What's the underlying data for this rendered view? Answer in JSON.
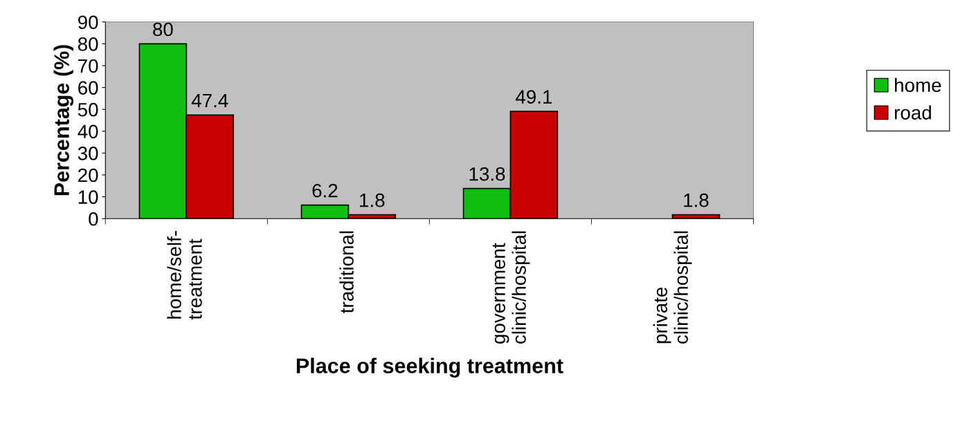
{
  "chart_data": {
    "type": "bar",
    "xlabel": "Place of seeking treatment",
    "ylabel": "Percentage (%)",
    "categories": [
      "home/self-\ntreatment",
      "traditional",
      "government\nclinic/hospital",
      "private\nclinic/hospital"
    ],
    "series": [
      {
        "name": "home",
        "color": "#10c010",
        "values": [
          80,
          6.2,
          13.8,
          null
        ],
        "value_labels": [
          "80",
          "6.2",
          "13.8",
          null
        ]
      },
      {
        "name": "road",
        "color": "#c80000",
        "values": [
          47.4,
          1.8,
          49.1,
          1.8
        ],
        "value_labels": [
          "47.4",
          "1.8",
          "49.1",
          "1.8"
        ]
      }
    ],
    "ylim": [
      0,
      90
    ],
    "yticks": [
      0,
      10,
      20,
      30,
      40,
      50,
      60,
      70,
      80,
      90
    ],
    "grid": false,
    "legend": "right"
  }
}
